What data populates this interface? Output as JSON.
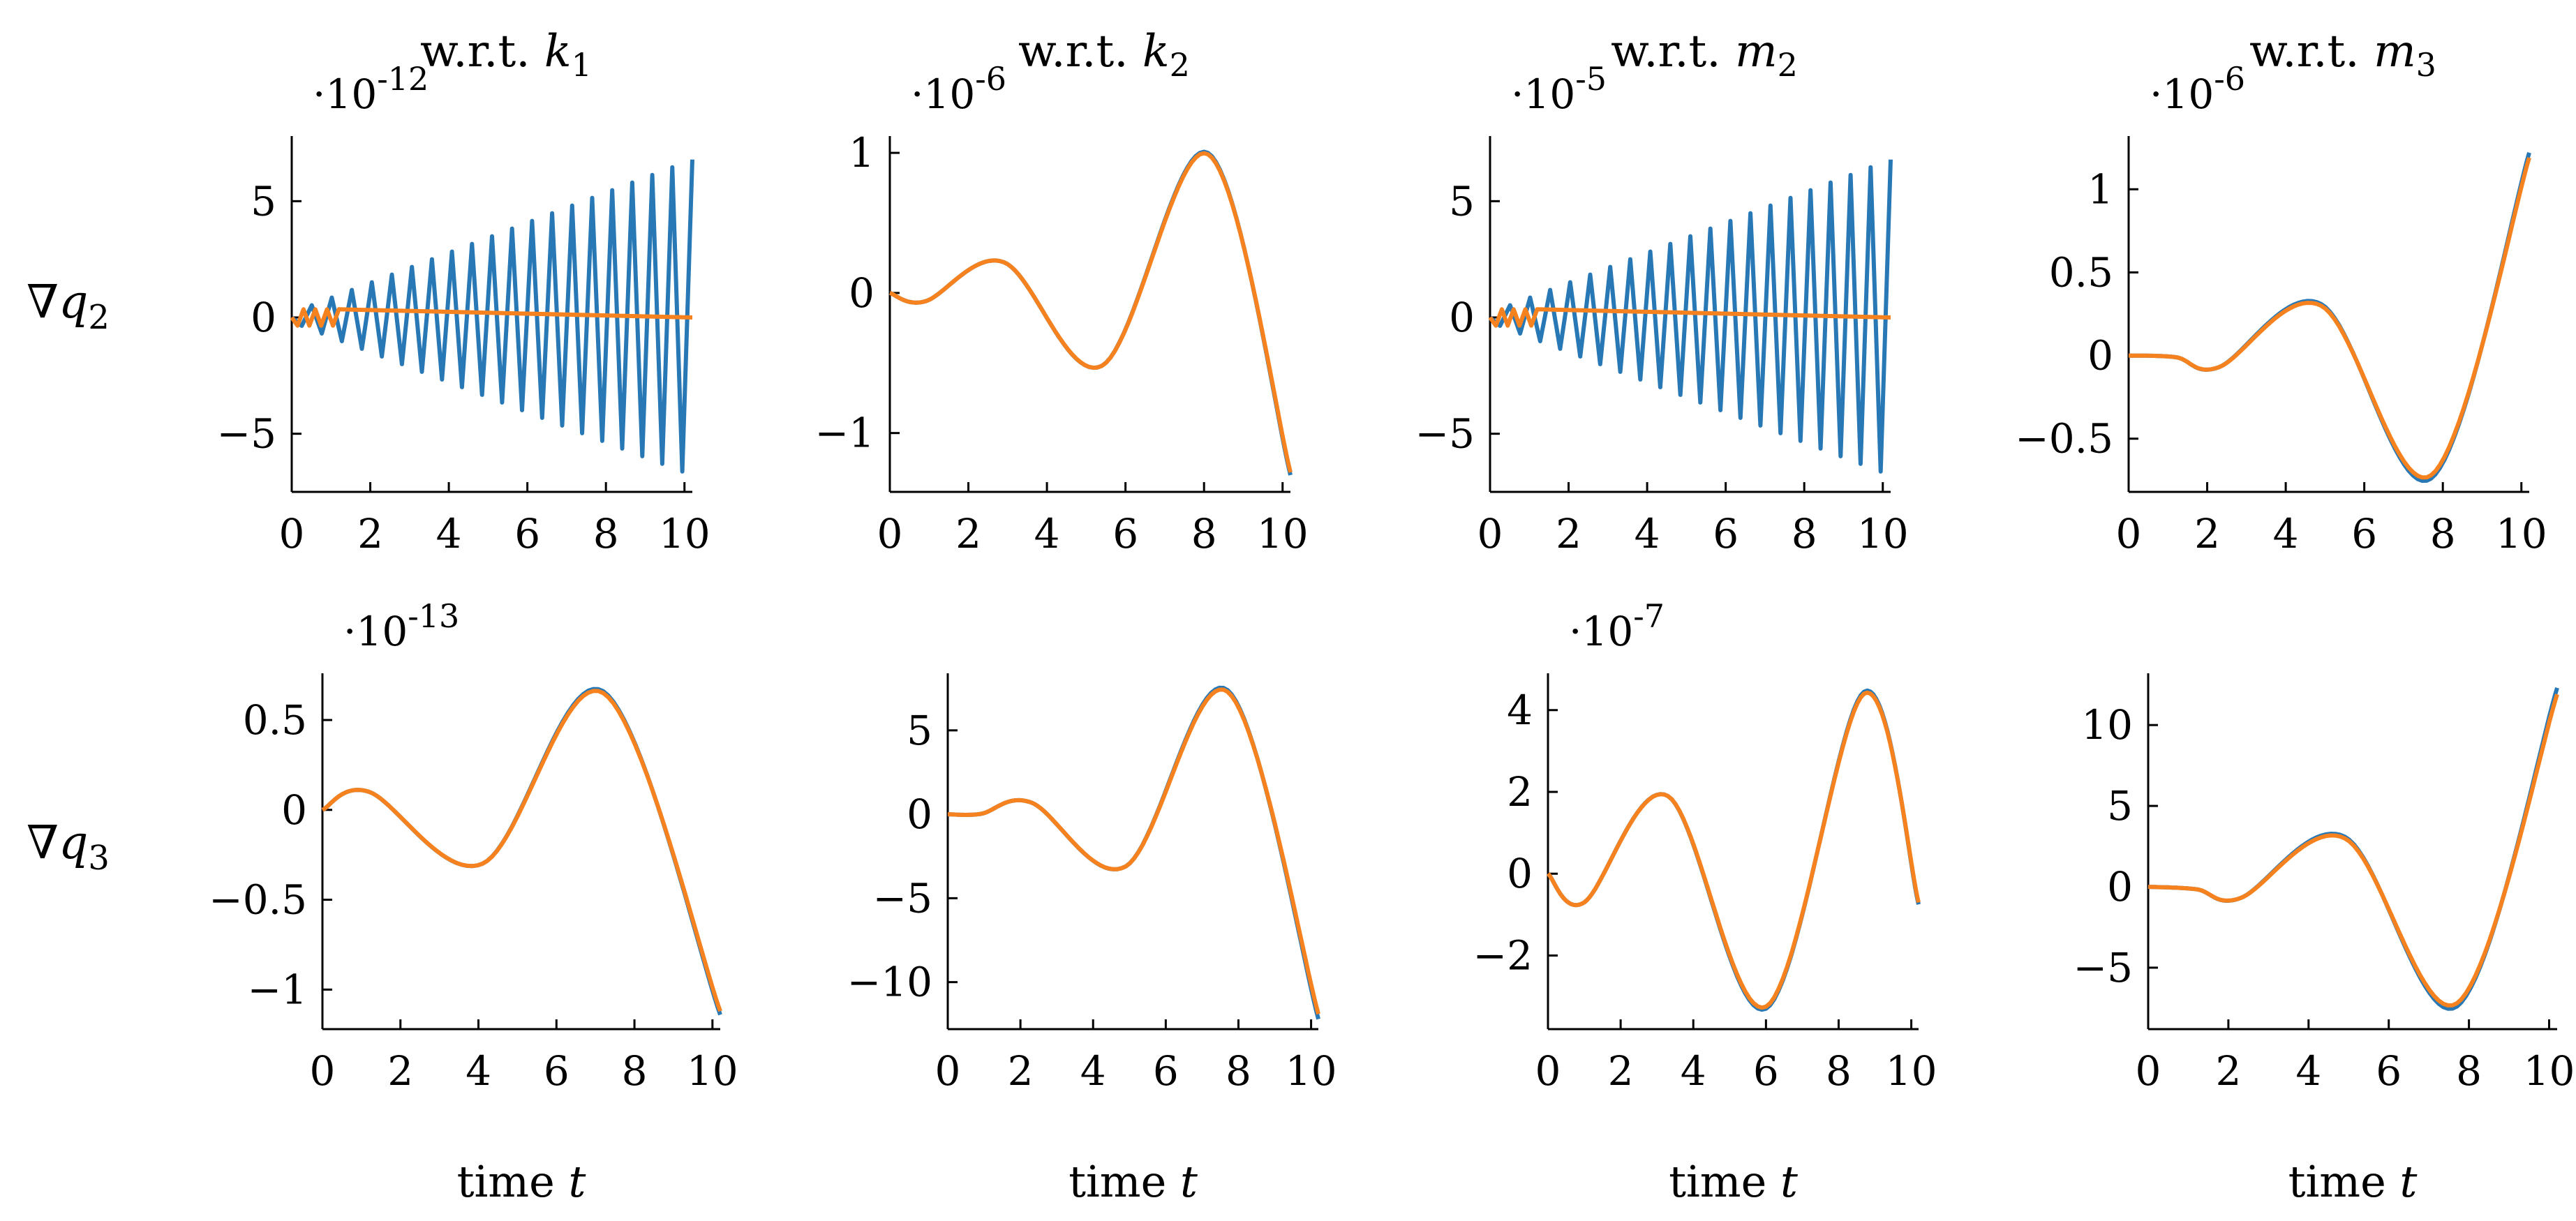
{
  "row_labels": [
    {
      "symbol": "∇",
      "var": "q",
      "sub": "2"
    },
    {
      "symbol": "∇",
      "var": "q",
      "sub": "3"
    }
  ],
  "column_titles": [
    {
      "prefix": "w.r.t. ",
      "var": "k",
      "sub": "1"
    },
    {
      "prefix": "w.r.t. ",
      "var": "k",
      "sub": "2"
    },
    {
      "prefix": "w.r.t. ",
      "var": "m",
      "sub": "2"
    },
    {
      "prefix": "w.r.t. ",
      "var": "m",
      "sub": "3"
    }
  ],
  "x_label": {
    "text": "time ",
    "var": "t"
  },
  "colors": {
    "series_blue": "#2878b5",
    "series_orange": "#f5821f"
  },
  "chart_data": [
    {
      "type": "line",
      "row": 0,
      "col": 0,
      "title": "w.r.t. k1",
      "ylabel": "∇q2",
      "exponent": "-12",
      "xlim": [
        0,
        10.2
      ],
      "ylim": [
        -7.5,
        7.8
      ],
      "xticks": [
        0,
        2,
        4,
        6,
        8,
        10
      ],
      "yticks": [
        -5,
        0,
        5
      ],
      "ytick_labels": [
        "−5",
        "0",
        "5"
      ],
      "series": [
        {
          "name": "blue",
          "kind": "zigzag",
          "envelope": [
            [
              0,
              0.2
            ],
            [
              10.2,
              7.0
            ]
          ]
        },
        {
          "name": "orange",
          "kind": "flat",
          "value": 0.0,
          "small_wiggle_until": 1.2,
          "small_wiggle_amp": 0.35
        }
      ]
    },
    {
      "type": "line",
      "row": 0,
      "col": 1,
      "title": "w.r.t. k2",
      "ylabel": "",
      "exponent": "-6",
      "xlim": [
        0,
        10.2
      ],
      "ylim": [
        -1.42,
        1.12
      ],
      "xticks": [
        0,
        2,
        4,
        6,
        8,
        10
      ],
      "yticks": [
        -1,
        0,
        1
      ],
      "ytick_labels": [
        "−1",
        "0",
        "1"
      ],
      "series": [
        {
          "name": "blue",
          "points": [
            [
              0,
              0
            ],
            [
              0.9,
              -0.06
            ],
            [
              2.9,
              0.22
            ],
            [
              5.4,
              -0.52
            ],
            [
              8.1,
              1.0
            ],
            [
              10.2,
              -1.3
            ]
          ]
        },
        {
          "name": "orange",
          "points": [
            [
              0,
              0
            ],
            [
              0.9,
              -0.06
            ],
            [
              2.9,
              0.22
            ],
            [
              5.4,
              -0.52
            ],
            [
              8.1,
              0.99
            ],
            [
              10.2,
              -1.28
            ]
          ]
        }
      ]
    },
    {
      "type": "line",
      "row": 0,
      "col": 2,
      "title": "w.r.t. m2",
      "ylabel": "",
      "exponent": "-5",
      "xlim": [
        0,
        10.2
      ],
      "ylim": [
        -7.5,
        7.8
      ],
      "xticks": [
        0,
        2,
        4,
        6,
        8,
        10
      ],
      "yticks": [
        -5,
        0,
        5
      ],
      "ytick_labels": [
        "−5",
        "0",
        "5"
      ],
      "series": [
        {
          "name": "blue",
          "kind": "zigzag",
          "envelope": [
            [
              0,
              0.2
            ],
            [
              10.2,
              7.0
            ]
          ]
        },
        {
          "name": "orange",
          "kind": "flat",
          "value": 0.0,
          "small_wiggle_until": 1.2,
          "small_wiggle_amp": 0.35
        }
      ]
    },
    {
      "type": "line",
      "row": 0,
      "col": 3,
      "title": "w.r.t. m3",
      "ylabel": "",
      "exponent": "-6",
      "xlim": [
        0,
        10.2
      ],
      "ylim": [
        -0.82,
        1.32
      ],
      "xticks": [
        0,
        2,
        4,
        6,
        8,
        10
      ],
      "yticks": [
        -0.5,
        0,
        0.5,
        1
      ],
      "ytick_labels": [
        "−0.5",
        "0",
        "0.5",
        "1"
      ],
      "series": [
        {
          "name": "blue",
          "points": [
            [
              0,
              0
            ],
            [
              1.2,
              -0.01
            ],
            [
              2.3,
              -0.07
            ],
            [
              4.9,
              0.31
            ],
            [
              7.7,
              -0.74
            ],
            [
              10.2,
              1.22
            ]
          ]
        },
        {
          "name": "orange",
          "points": [
            [
              0,
              0
            ],
            [
              1.2,
              -0.01
            ],
            [
              2.3,
              -0.07
            ],
            [
              4.9,
              0.3
            ],
            [
              7.7,
              -0.72
            ],
            [
              10.2,
              1.19
            ]
          ]
        }
      ]
    },
    {
      "type": "line",
      "row": 1,
      "col": 0,
      "title": "",
      "ylabel": "∇q3",
      "exponent": "-13",
      "xlim": [
        0,
        10.2
      ],
      "ylim": [
        -1.22,
        0.76
      ],
      "xticks": [
        0,
        2,
        4,
        6,
        8,
        10
      ],
      "yticks": [
        -1,
        -0.5,
        0,
        0.5
      ],
      "ytick_labels": [
        "−1",
        "−0.5",
        "0",
        "0.5"
      ],
      "series": [
        {
          "name": "blue",
          "points": [
            [
              0,
              0
            ],
            [
              1.2,
              0.1
            ],
            [
              4.1,
              -0.3
            ],
            [
              7.2,
              0.66
            ],
            [
              10.2,
              -1.14
            ]
          ]
        },
        {
          "name": "orange",
          "points": [
            [
              0,
              0
            ],
            [
              1.2,
              0.1
            ],
            [
              4.1,
              -0.3
            ],
            [
              7.2,
              0.65
            ],
            [
              10.2,
              -1.12
            ]
          ]
        }
      ]
    },
    {
      "type": "line",
      "row": 1,
      "col": 1,
      "title": "",
      "ylabel": "",
      "exponent": "",
      "xlim": [
        0,
        10.2
      ],
      "ylim": [
        -12.8,
        8.4
      ],
      "xticks": [
        0,
        2,
        4,
        6,
        8,
        10
      ],
      "yticks": [
        -10,
        -5,
        0,
        5
      ],
      "ytick_labels": [
        "−10",
        "−5",
        "0",
        "5"
      ],
      "series": [
        {
          "name": "blue",
          "points": [
            [
              0,
              0
            ],
            [
              0.9,
              0.02
            ],
            [
              2.3,
              0.7
            ],
            [
              4.9,
              -3.1
            ],
            [
              7.7,
              7.4
            ],
            [
              10.2,
              -12.2
            ]
          ]
        },
        {
          "name": "orange",
          "points": [
            [
              0,
              0
            ],
            [
              0.9,
              0.02
            ],
            [
              2.3,
              0.7
            ],
            [
              4.9,
              -3.1
            ],
            [
              7.7,
              7.3
            ],
            [
              10.2,
              -11.9
            ]
          ]
        }
      ]
    },
    {
      "type": "line",
      "row": 1,
      "col": 2,
      "title": "",
      "ylabel": "",
      "exponent": "-7",
      "xlim": [
        0,
        10.2
      ],
      "ylim": [
        -3.8,
        4.9
      ],
      "xticks": [
        0,
        2,
        4,
        6,
        8,
        10
      ],
      "yticks": [
        -2,
        0,
        2,
        4
      ],
      "ytick_labels": [
        "−2",
        "0",
        "2",
        "4"
      ],
      "series": [
        {
          "name": "blue",
          "points": [
            [
              0,
              0
            ],
            [
              1.0,
              -0.7
            ],
            [
              3.3,
              1.9
            ],
            [
              6.0,
              -3.3
            ],
            [
              8.7,
              4.45
            ],
            [
              10.2,
              -0.75
            ]
          ]
        },
        {
          "name": "orange",
          "points": [
            [
              0,
              0
            ],
            [
              1.0,
              -0.7
            ],
            [
              3.3,
              1.9
            ],
            [
              6.0,
              -3.25
            ],
            [
              8.7,
              4.4
            ],
            [
              10.2,
              -0.7
            ]
          ]
        }
      ]
    },
    {
      "type": "line",
      "row": 1,
      "col": 3,
      "title": "",
      "ylabel": "",
      "exponent": "",
      "xlim": [
        0,
        10.2
      ],
      "ylim": [
        -8.8,
        13.2
      ],
      "xticks": [
        0,
        2,
        4,
        6,
        8,
        10
      ],
      "yticks": [
        -5,
        0,
        5,
        10
      ],
      "ytick_labels": [
        "−5",
        "0",
        "5",
        "10"
      ],
      "series": [
        {
          "name": "blue",
          "points": [
            [
              0,
              0
            ],
            [
              1.2,
              -0.15
            ],
            [
              2.3,
              -0.7
            ],
            [
              4.9,
              3.1
            ],
            [
              7.7,
              -7.4
            ],
            [
              10.2,
              12.3
            ]
          ]
        },
        {
          "name": "orange",
          "points": [
            [
              0,
              0
            ],
            [
              1.2,
              -0.15
            ],
            [
              2.3,
              -0.7
            ],
            [
              4.9,
              3.0
            ],
            [
              7.7,
              -7.2
            ],
            [
              10.2,
              11.9
            ]
          ]
        }
      ]
    }
  ]
}
